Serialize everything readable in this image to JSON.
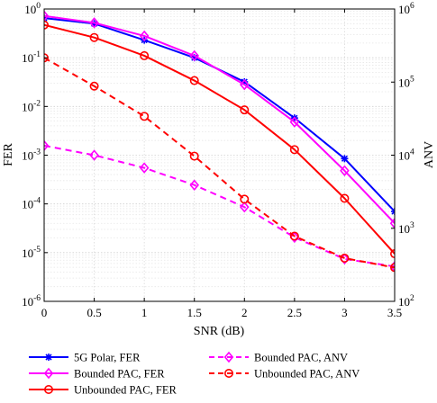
{
  "chart_data": {
    "type": "line",
    "title": "",
    "xlabel": "SNR (dB)",
    "ylabel_left": "FER",
    "ylabel_right": "ANV",
    "x": [
      0,
      0.5,
      1,
      1.5,
      2,
      2.5,
      3,
      3.5
    ],
    "xticks": [
      "0",
      "0.5",
      "1",
      "1.5",
      "2",
      "2.5",
      "3",
      "3.5"
    ],
    "xlim": [
      0,
      3.5
    ],
    "ylim_left": [
      1e-06,
      1
    ],
    "ylim_right": [
      100,
      1000000
    ],
    "yscale_left": "log",
    "yscale_right": "log",
    "yticks_left": [
      {
        "base": "10",
        "exp": "0"
      },
      {
        "base": "10",
        "exp": "-1"
      },
      {
        "base": "10",
        "exp": "-2"
      },
      {
        "base": "10",
        "exp": "-3"
      },
      {
        "base": "10",
        "exp": "-4"
      },
      {
        "base": "10",
        "exp": "-5"
      },
      {
        "base": "10",
        "exp": "-6"
      }
    ],
    "yticks_right": [
      {
        "base": "10",
        "exp": "6"
      },
      {
        "base": "10",
        "exp": "5"
      },
      {
        "base": "10",
        "exp": "4"
      },
      {
        "base": "10",
        "exp": "3"
      },
      {
        "base": "10",
        "exp": "2"
      }
    ],
    "grid": true,
    "legend_position": "bottom",
    "series": [
      {
        "name": "5G Polar, FER",
        "axis": "left",
        "color": "#0000ff",
        "marker": "asterisk",
        "dashed": false,
        "values": [
          0.65,
          0.5,
          0.23,
          0.1,
          0.032,
          0.0058,
          0.00085,
          7e-05
        ]
      },
      {
        "name": "Bounded PAC, FER",
        "axis": "left",
        "color": "#ff00ff",
        "marker": "diamond",
        "dashed": false,
        "values": [
          0.72,
          0.52,
          0.28,
          0.11,
          0.028,
          0.0048,
          0.00048,
          4e-05
        ]
      },
      {
        "name": "Unbounded PAC, FER",
        "axis": "left",
        "color": "#ff0000",
        "marker": "circle",
        "dashed": false,
        "values": [
          0.47,
          0.26,
          0.11,
          0.034,
          0.0085,
          0.0013,
          0.00013,
          9.5e-06
        ]
      },
      {
        "name": "Bounded PAC, ANV",
        "axis": "right",
        "color": "#ff00ff",
        "marker": "diamond",
        "dashed": true,
        "values": [
          13500,
          10000,
          6700,
          3900,
          1950,
          750,
          380,
          300
        ]
      },
      {
        "name": "Unbounded PAC, ANV",
        "axis": "right",
        "color": "#ff0000",
        "marker": "circle",
        "dashed": true,
        "values": [
          215000,
          88000,
          34000,
          9700,
          2500,
          780,
          390,
          290
        ]
      }
    ]
  }
}
